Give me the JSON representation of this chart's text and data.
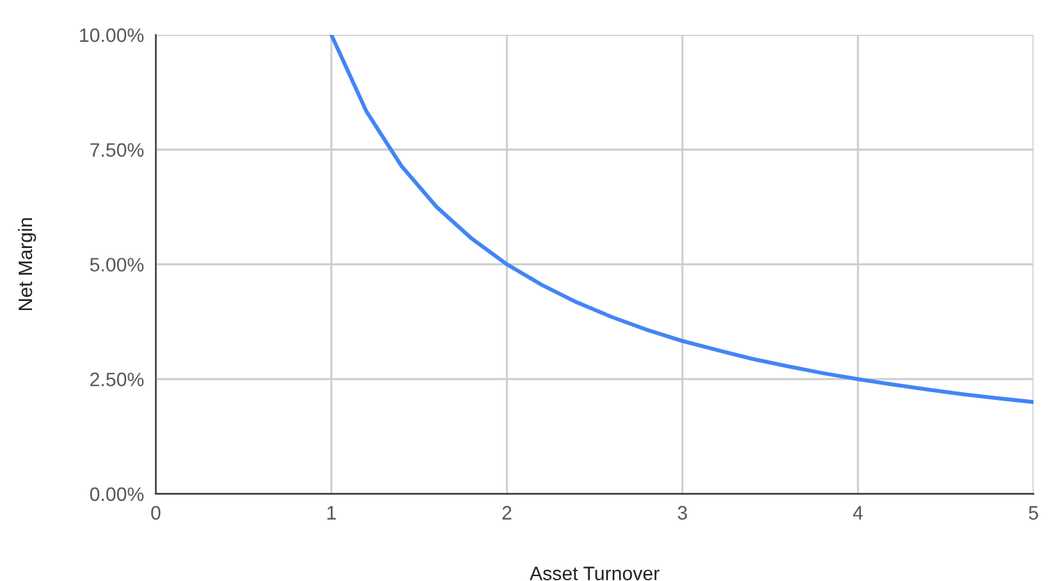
{
  "chart_data": {
    "type": "line",
    "xlabel": "Asset Turnover",
    "ylabel": "Net Margin",
    "x": [
      1,
      1.2,
      1.4,
      1.6,
      1.8,
      2,
      2.2,
      2.4,
      2.6,
      2.8,
      3,
      3.2,
      3.4,
      3.6,
      3.8,
      4,
      4.2,
      4.4,
      4.6,
      4.8,
      5
    ],
    "series": [
      {
        "color": "#4285f4",
        "values": [
          10,
          8.33,
          7.14,
          6.25,
          5.56,
          5,
          4.55,
          4.17,
          3.85,
          3.57,
          3.33,
          3.13,
          2.94,
          2.78,
          2.63,
          2.5,
          2.38,
          2.27,
          2.17,
          2.08,
          2
        ]
      }
    ],
    "xlim": [
      0,
      5
    ],
    "xticks": [
      0,
      1,
      2,
      3,
      4,
      5
    ],
    "ylim": [
      0,
      10
    ],
    "yticks": [
      {
        "value": 0,
        "label": "0.00%"
      },
      {
        "value": 2.5,
        "label": "2.50%"
      },
      {
        "value": 5,
        "label": "5.00%"
      },
      {
        "value": 7.5,
        "label": "7.50%"
      },
      {
        "value": 10,
        "label": "10.00%"
      }
    ],
    "grid": true,
    "legend": false,
    "marker": "none",
    "line_style": "solid"
  }
}
